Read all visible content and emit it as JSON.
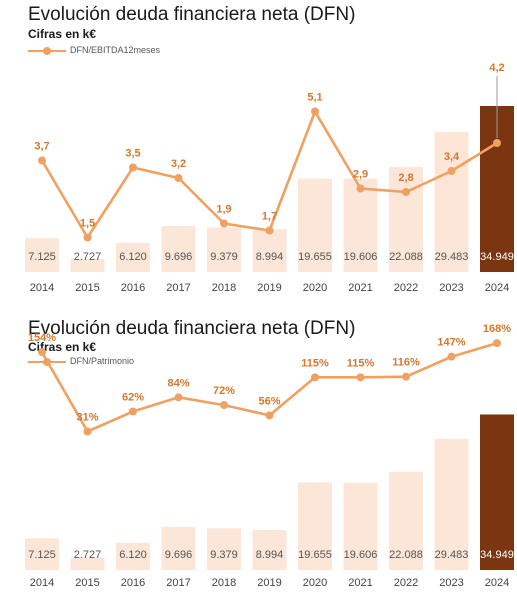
{
  "chart_data": [
    {
      "type": "bar+line",
      "title": "Evolución deuda financiera neta (DFN)",
      "subtitle": "Cifras en k€",
      "categories": [
        "2014",
        "2015",
        "2016",
        "2017",
        "2018",
        "2019",
        "2020",
        "2021",
        "2022",
        "2023",
        "2024"
      ],
      "bar_values": [
        7125,
        2727,
        6120,
        9696,
        9379,
        8994,
        19655,
        19606,
        22088,
        29483,
        34949
      ],
      "bar_labels": [
        "7.125",
        "2.727",
        "6.120",
        "9.696",
        "9.379",
        "8.994",
        "19.655",
        "19.606",
        "22.088",
        "29.483",
        "34.949"
      ],
      "line_series": {
        "name": "DFN/EBITDA12meses",
        "values": [
          3.7,
          1.5,
          3.5,
          3.2,
          1.9,
          1.7,
          5.1,
          2.9,
          2.8,
          3.4,
          4.2
        ],
        "labels": [
          "3,7",
          "1,5",
          "3,5",
          "3,2",
          "1,9",
          "1,7",
          "5,1",
          "2,9",
          "2,8",
          "3,4",
          "4,2"
        ]
      },
      "legend_position": "top-left",
      "grid": false
    },
    {
      "type": "bar+line",
      "title": "Evolución deuda financiera neta (DFN)",
      "subtitle": "Cifras en k€",
      "categories": [
        "2014",
        "2015",
        "2016",
        "2017",
        "2018",
        "2019",
        "2020",
        "2021",
        "2022",
        "2023",
        "2024"
      ],
      "bar_values": [
        7125,
        2727,
        6120,
        9696,
        9379,
        8994,
        19655,
        19606,
        22088,
        29483,
        34949
      ],
      "bar_labels": [
        "7.125",
        "2.727",
        "6.120",
        "9.696",
        "9.379",
        "8.994",
        "19.655",
        "19.606",
        "22.088",
        "29.483",
        "34.949"
      ],
      "line_series": {
        "name": "DFN/Patrimonio",
        "values": [
          154,
          31,
          62,
          84,
          72,
          56,
          115,
          115,
          116,
          147,
          168
        ],
        "labels": [
          "154%",
          "31%",
          "62%",
          "84%",
          "72%",
          "56%",
          "115%",
          "115%",
          "116%",
          "147%",
          "168%"
        ]
      },
      "legend_position": "top-left",
      "grid": false
    }
  ],
  "colors": {
    "bar": "#fbe6d8",
    "bar_highlight": "#7b3510",
    "line": "#f0a060",
    "label": "#d4782e",
    "bar_label": "#555555",
    "bar_label_highlight": "#ffffff",
    "axis_text": "#444444"
  }
}
